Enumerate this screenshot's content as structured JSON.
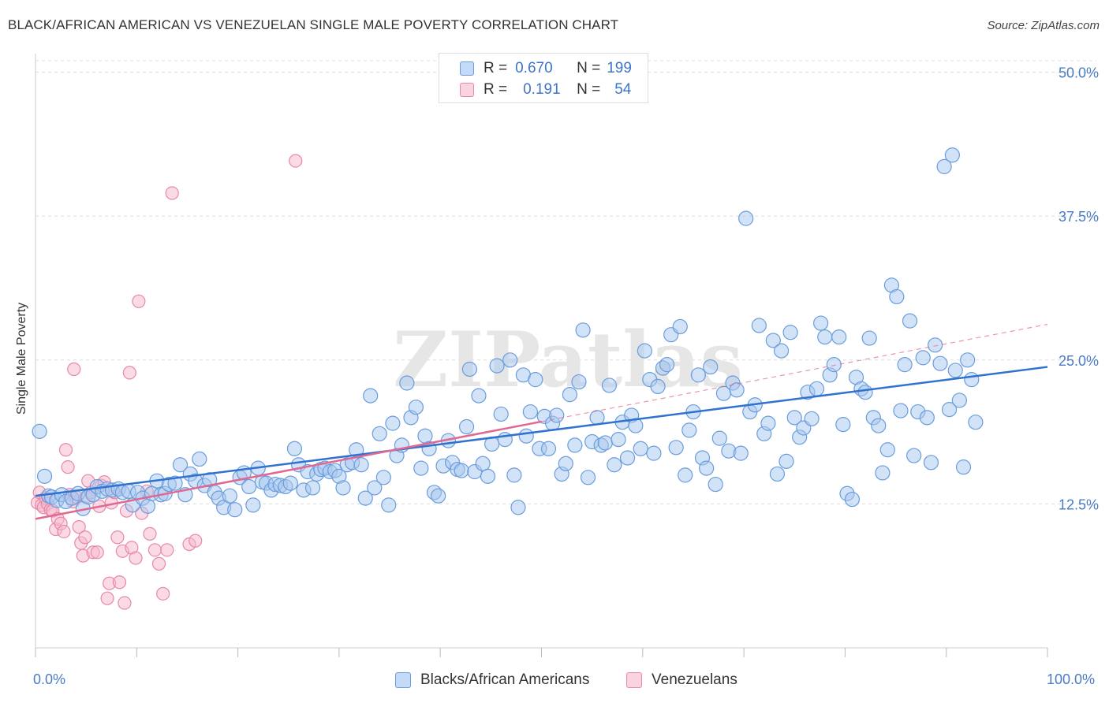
{
  "title": "BLACK/AFRICAN AMERICAN VS VENEZUELAN SINGLE MALE POVERTY CORRELATION CHART",
  "source": "Source: ZipAtlas.com",
  "watermark": "ZIPatlas",
  "legend_top": [
    {
      "r_label": "R =",
      "r_value": "0.670",
      "n_label": "N =",
      "n_value": "199",
      "color": "#a8c8f0"
    },
    {
      "r_label": "R =",
      "r_value": "0.191",
      "n_label": "N =",
      "n_value": "54",
      "color": "#f6b8cb"
    }
  ],
  "legend_bottom": [
    {
      "label": "Blacks/African Americans",
      "color": "#a8c8f0"
    },
    {
      "label": "Venezuelans",
      "color": "#f6b8cb"
    }
  ],
  "colors": {
    "blue_fill": "#a8c8f0",
    "blue_stroke": "#6a9ddc",
    "blue_line": "#2f72d0",
    "pink_fill": "#f6b8cb",
    "pink_stroke": "#e888a8",
    "pink_line": "#e06893",
    "axis_text": "#4a7cc4",
    "grid": "#dddddd"
  },
  "chart_data": {
    "type": "scatter",
    "title": "BLACK/AFRICAN AMERICAN VS VENEZUELAN SINGLE MALE POVERTY CORRELATION CHART",
    "xlabel": "",
    "ylabel": "Single Male Poverty",
    "xlim": [
      0,
      100
    ],
    "ylim": [
      0,
      51
    ],
    "x_tick_labels": [
      "0.0%",
      "100.0%"
    ],
    "y_ticks": [
      12.5,
      25.0,
      37.5,
      50.0
    ],
    "y_tick_labels": [
      "12.5%",
      "25.0%",
      "37.5%",
      "50.0%"
    ],
    "grid": "horizontal dashed",
    "legend_position": "top-center",
    "series": [
      {
        "name": "Blacks/African Americans",
        "R": 0.67,
        "N": 199,
        "trend": {
          "x": [
            0,
            100
          ],
          "y": [
            13.2,
            24.4
          ],
          "style": "solid"
        },
        "points": [
          [
            0.4,
            18.8
          ],
          [
            0.9,
            14.9
          ],
          [
            1.3,
            13.2
          ],
          [
            1.6,
            13.1
          ],
          [
            2.1,
            12.8
          ],
          [
            2.6,
            13.3
          ],
          [
            3.0,
            12.7
          ],
          [
            3.6,
            13.0
          ],
          [
            4.2,
            13.4
          ],
          [
            4.7,
            12.1
          ],
          [
            5.2,
            13.1
          ],
          [
            5.7,
            13.3
          ],
          [
            6.1,
            14.0
          ],
          [
            6.6,
            13.6
          ],
          [
            7.1,
            13.8
          ],
          [
            7.6,
            13.7
          ],
          [
            8.2,
            13.8
          ],
          [
            8.6,
            13.5
          ],
          [
            9.2,
            13.6
          ],
          [
            9.6,
            12.4
          ],
          [
            10.1,
            13.5
          ],
          [
            10.6,
            13.0
          ],
          [
            11.1,
            12.3
          ],
          [
            11.5,
            13.4
          ],
          [
            12.0,
            14.5
          ],
          [
            12.4,
            13.3
          ],
          [
            12.8,
            13.4
          ],
          [
            13.2,
            14.2
          ],
          [
            13.8,
            14.3
          ],
          [
            14.3,
            15.9
          ],
          [
            14.8,
            13.3
          ],
          [
            15.3,
            15.1
          ],
          [
            15.8,
            14.5
          ],
          [
            16.2,
            16.4
          ],
          [
            16.7,
            14.1
          ],
          [
            17.2,
            14.6
          ],
          [
            17.7,
            13.5
          ],
          [
            18.1,
            13.0
          ],
          [
            18.6,
            12.2
          ],
          [
            19.2,
            13.2
          ],
          [
            19.7,
            12.0
          ],
          [
            20.2,
            14.8
          ],
          [
            20.6,
            15.2
          ],
          [
            21.1,
            14.0
          ],
          [
            21.5,
            12.4
          ],
          [
            22.0,
            15.6
          ],
          [
            22.4,
            14.4
          ],
          [
            22.8,
            14.3
          ],
          [
            23.3,
            13.7
          ],
          [
            23.7,
            14.2
          ],
          [
            24.2,
            14.1
          ],
          [
            24.7,
            14.0
          ],
          [
            25.2,
            14.3
          ],
          [
            25.6,
            17.3
          ],
          [
            26.0,
            15.9
          ],
          [
            26.5,
            13.7
          ],
          [
            26.9,
            15.3
          ],
          [
            27.4,
            13.9
          ],
          [
            27.8,
            15.1
          ],
          [
            28.2,
            15.5
          ],
          [
            28.6,
            15.6
          ],
          [
            29.1,
            15.3
          ],
          [
            29.6,
            15.4
          ],
          [
            30.0,
            14.9
          ],
          [
            30.4,
            13.9
          ],
          [
            30.8,
            15.9
          ],
          [
            31.3,
            16.1
          ],
          [
            31.7,
            17.2
          ],
          [
            32.2,
            15.9
          ],
          [
            32.6,
            13.0
          ],
          [
            33.1,
            21.9
          ],
          [
            33.5,
            13.9
          ],
          [
            34.0,
            18.6
          ],
          [
            34.4,
            14.8
          ],
          [
            34.9,
            12.4
          ],
          [
            35.3,
            19.5
          ],
          [
            35.7,
            16.7
          ],
          [
            36.2,
            17.6
          ],
          [
            36.7,
            23.0
          ],
          [
            37.1,
            20.0
          ],
          [
            37.6,
            20.9
          ],
          [
            38.1,
            15.6
          ],
          [
            38.5,
            18.4
          ],
          [
            38.9,
            17.3
          ],
          [
            39.4,
            13.5
          ],
          [
            39.8,
            13.2
          ],
          [
            40.3,
            15.8
          ],
          [
            40.8,
            18.0
          ],
          [
            41.2,
            16.1
          ],
          [
            41.7,
            15.5
          ],
          [
            42.1,
            15.4
          ],
          [
            42.6,
            19.2
          ],
          [
            42.9,
            24.2
          ],
          [
            43.4,
            15.3
          ],
          [
            43.8,
            21.9
          ],
          [
            44.2,
            16.0
          ],
          [
            44.7,
            14.9
          ],
          [
            45.1,
            17.7
          ],
          [
            45.6,
            24.5
          ],
          [
            46.0,
            20.3
          ],
          [
            46.4,
            18.1
          ],
          [
            46.9,
            25.0
          ],
          [
            47.3,
            15.0
          ],
          [
            47.7,
            12.2
          ],
          [
            48.2,
            23.7
          ],
          [
            48.5,
            18.4
          ],
          [
            48.9,
            20.5
          ],
          [
            49.4,
            23.3
          ],
          [
            49.8,
            17.3
          ],
          [
            50.3,
            20.1
          ],
          [
            50.7,
            17.3
          ],
          [
            51.1,
            19.5
          ],
          [
            51.5,
            20.2
          ],
          [
            52.0,
            15.1
          ],
          [
            52.4,
            16.0
          ],
          [
            52.8,
            22.0
          ],
          [
            53.3,
            17.6
          ],
          [
            53.7,
            23.1
          ],
          [
            54.1,
            27.6
          ],
          [
            54.6,
            14.8
          ],
          [
            55.0,
            17.9
          ],
          [
            55.5,
            20.0
          ],
          [
            55.9,
            17.6
          ],
          [
            56.3,
            17.8
          ],
          [
            56.7,
            22.8
          ],
          [
            57.2,
            15.9
          ],
          [
            57.6,
            18.1
          ],
          [
            58.0,
            19.6
          ],
          [
            58.5,
            16.5
          ],
          [
            58.9,
            20.2
          ],
          [
            59.3,
            19.3
          ],
          [
            59.8,
            17.3
          ],
          [
            60.2,
            25.8
          ],
          [
            60.7,
            23.3
          ],
          [
            61.1,
            16.9
          ],
          [
            61.5,
            22.7
          ],
          [
            62.0,
            24.3
          ],
          [
            62.4,
            24.6
          ],
          [
            62.8,
            27.2
          ],
          [
            63.3,
            17.4
          ],
          [
            63.7,
            27.9
          ],
          [
            64.2,
            15.0
          ],
          [
            64.6,
            18.9
          ],
          [
            65.0,
            20.5
          ],
          [
            65.5,
            23.7
          ],
          [
            65.9,
            16.5
          ],
          [
            66.3,
            15.6
          ],
          [
            66.7,
            24.4
          ],
          [
            67.2,
            14.2
          ],
          [
            67.6,
            18.2
          ],
          [
            68.0,
            22.1
          ],
          [
            68.5,
            17.1
          ],
          [
            68.9,
            23.0
          ],
          [
            69.3,
            22.4
          ],
          [
            69.7,
            16.9
          ],
          [
            70.2,
            37.3
          ],
          [
            70.6,
            20.5
          ],
          [
            71.1,
            21.1
          ],
          [
            71.5,
            28.0
          ],
          [
            72.0,
            18.6
          ],
          [
            72.4,
            19.5
          ],
          [
            72.9,
            26.7
          ],
          [
            73.3,
            15.1
          ],
          [
            73.7,
            25.8
          ],
          [
            74.2,
            16.2
          ],
          [
            74.6,
            27.4
          ],
          [
            75.0,
            20.0
          ],
          [
            75.5,
            18.3
          ],
          [
            75.9,
            19.1
          ],
          [
            76.3,
            22.2
          ],
          [
            76.7,
            19.9
          ],
          [
            77.2,
            22.5
          ],
          [
            77.6,
            28.2
          ],
          [
            78.0,
            27.0
          ],
          [
            78.5,
            23.7
          ],
          [
            78.9,
            24.6
          ],
          [
            79.4,
            27.0
          ],
          [
            79.8,
            19.4
          ],
          [
            80.2,
            13.4
          ],
          [
            80.7,
            12.9
          ],
          [
            81.1,
            23.5
          ],
          [
            81.6,
            22.5
          ],
          [
            82.0,
            22.2
          ],
          [
            82.4,
            26.9
          ],
          [
            82.8,
            20.0
          ],
          [
            83.3,
            19.3
          ],
          [
            83.7,
            15.2
          ],
          [
            84.2,
            17.2
          ],
          [
            84.6,
            31.5
          ],
          [
            85.1,
            30.5
          ],
          [
            85.5,
            20.6
          ],
          [
            85.9,
            24.6
          ],
          [
            86.4,
            28.4
          ],
          [
            86.8,
            16.7
          ],
          [
            87.2,
            20.5
          ],
          [
            87.7,
            25.2
          ],
          [
            88.1,
            20.0
          ],
          [
            88.5,
            16.1
          ],
          [
            88.9,
            26.3
          ],
          [
            89.4,
            24.7
          ],
          [
            89.8,
            41.8
          ],
          [
            90.3,
            20.7
          ],
          [
            90.6,
            42.8
          ],
          [
            90.9,
            24.1
          ],
          [
            91.3,
            21.5
          ],
          [
            91.7,
            15.7
          ],
          [
            92.1,
            25.0
          ],
          [
            92.5,
            23.3
          ],
          [
            92.9,
            19.6
          ]
        ]
      },
      {
        "name": "Venezuelans",
        "R": 0.191,
        "N": 54,
        "trend": {
          "x": [
            0,
            100
          ],
          "y": [
            11.2,
            28.1
          ],
          "style": "solid to 50, dashed after"
        },
        "points": [
          [
            0.2,
            12.6
          ],
          [
            0.4,
            13.5
          ],
          [
            0.6,
            12.4
          ],
          [
            0.8,
            12.2
          ],
          [
            1.0,
            13.0
          ],
          [
            1.2,
            12.5
          ],
          [
            1.5,
            12.0
          ],
          [
            1.7,
            11.9
          ],
          [
            2.0,
            10.3
          ],
          [
            2.2,
            11.2
          ],
          [
            2.5,
            10.8
          ],
          [
            2.8,
            10.1
          ],
          [
            3.0,
            17.2
          ],
          [
            3.2,
            15.7
          ],
          [
            3.4,
            13.3
          ],
          [
            3.7,
            12.7
          ],
          [
            3.8,
            24.2
          ],
          [
            4.0,
            13.1
          ],
          [
            4.3,
            10.5
          ],
          [
            4.5,
            9.1
          ],
          [
            4.7,
            8.0
          ],
          [
            4.9,
            9.6
          ],
          [
            5.0,
            13.1
          ],
          [
            5.2,
            14.5
          ],
          [
            5.5,
            13.5
          ],
          [
            5.7,
            8.3
          ],
          [
            6.1,
            8.3
          ],
          [
            6.3,
            12.3
          ],
          [
            6.5,
            14.1
          ],
          [
            6.8,
            14.4
          ],
          [
            7.1,
            4.3
          ],
          [
            7.3,
            5.6
          ],
          [
            7.5,
            12.6
          ],
          [
            7.8,
            13.5
          ],
          [
            8.1,
            9.6
          ],
          [
            8.3,
            5.7
          ],
          [
            8.6,
            8.4
          ],
          [
            8.8,
            3.9
          ],
          [
            9.0,
            11.9
          ],
          [
            9.3,
            23.9
          ],
          [
            9.5,
            8.7
          ],
          [
            9.9,
            7.8
          ],
          [
            10.2,
            30.1
          ],
          [
            10.5,
            11.7
          ],
          [
            11.0,
            13.6
          ],
          [
            11.3,
            9.9
          ],
          [
            11.8,
            8.5
          ],
          [
            12.2,
            7.3
          ],
          [
            12.6,
            4.7
          ],
          [
            13.0,
            8.5
          ],
          [
            13.5,
            39.5
          ],
          [
            15.2,
            9.0
          ],
          [
            15.8,
            9.3
          ],
          [
            25.7,
            42.3
          ]
        ]
      }
    ]
  }
}
